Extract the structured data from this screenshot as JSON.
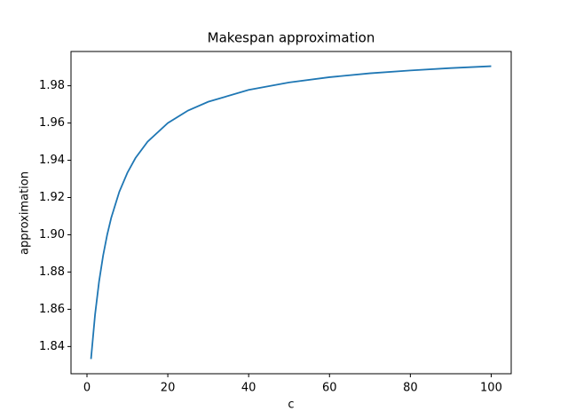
{
  "chart_data": {
    "type": "line",
    "title": "Makespan approximation",
    "x_label": "c",
    "y_label": "approximation",
    "x": [
      1,
      2,
      3,
      4,
      5,
      6,
      8,
      10,
      12,
      15,
      20,
      25,
      30,
      40,
      50,
      60,
      70,
      80,
      90,
      100
    ],
    "series": [
      {
        "color": "#1f77b4",
        "values": [
          1.8333,
          1.8571,
          1.875,
          1.8889,
          1.9,
          1.9091,
          1.9231,
          1.9333,
          1.9412,
          1.95,
          1.96,
          1.9667,
          1.9714,
          1.9778,
          1.9818,
          1.9846,
          1.9867,
          1.9882,
          1.9895,
          1.9905
        ]
      }
    ],
    "xlim": [
      -3.95,
      104.95
    ],
    "ylim": [
      1.8254,
      1.9984
    ],
    "xticks": [
      0,
      20,
      40,
      60,
      80,
      100
    ],
    "yticks": [
      1.84,
      1.86,
      1.88,
      {
        "value": 1.9,
        "label": "1.90"
      },
      1.92,
      1.94,
      1.96,
      1.98
    ]
  }
}
